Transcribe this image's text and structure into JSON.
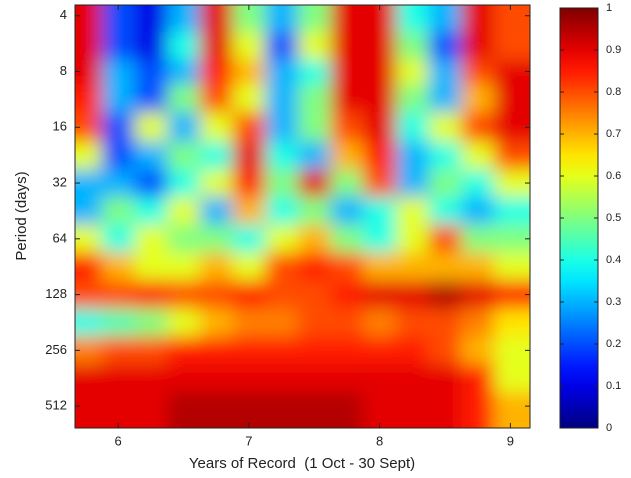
{
  "chart_data": {
    "type": "heatmap",
    "x_label": "Years of Record  (1 Oct - 30 Sept)",
    "y_label": "Period (days)",
    "x": [
      5.75,
      6.0,
      6.25,
      6.5,
      6.75,
      7.0,
      7.25,
      7.5,
      7.75,
      8.0,
      8.25,
      8.5,
      8.75,
      9.0
    ],
    "y": [
      4,
      6,
      8,
      11,
      16,
      23,
      32,
      45,
      64,
      90,
      128,
      181,
      256,
      362,
      512
    ],
    "z": [
      [
        0.9,
        0.2,
        0.1,
        0.3,
        0.9,
        0.5,
        0.3,
        0.5,
        0.9,
        0.9,
        0.4,
        0.3,
        0.9,
        0.8
      ],
      [
        0.9,
        0.2,
        0.1,
        0.4,
        0.9,
        0.6,
        0.2,
        0.6,
        0.9,
        0.9,
        0.5,
        0.2,
        0.9,
        0.8
      ],
      [
        0.9,
        0.3,
        0.2,
        0.3,
        0.85,
        0.7,
        0.3,
        0.4,
        0.9,
        0.9,
        0.6,
        0.3,
        0.8,
        0.9
      ],
      [
        0.85,
        0.3,
        0.2,
        0.5,
        0.8,
        0.6,
        0.3,
        0.5,
        0.9,
        0.9,
        0.5,
        0.3,
        0.7,
        0.9
      ],
      [
        0.8,
        0.2,
        0.6,
        0.3,
        0.6,
        0.8,
        0.3,
        0.5,
        0.8,
        0.9,
        0.4,
        0.6,
        0.8,
        0.9
      ],
      [
        0.6,
        0.2,
        0.3,
        0.5,
        0.4,
        0.9,
        0.4,
        0.3,
        0.7,
        0.85,
        0.3,
        0.4,
        0.6,
        0.8
      ],
      [
        0.3,
        0.3,
        0.2,
        0.4,
        0.6,
        0.85,
        0.5,
        0.9,
        0.5,
        0.8,
        0.3,
        0.5,
        0.4,
        0.6
      ],
      [
        0.3,
        0.5,
        0.4,
        0.6,
        0.3,
        0.7,
        0.4,
        0.5,
        0.3,
        0.4,
        0.6,
        0.4,
        0.3,
        0.4
      ],
      [
        0.6,
        0.4,
        0.6,
        0.5,
        0.5,
        0.4,
        0.6,
        0.7,
        0.5,
        0.4,
        0.6,
        0.8,
        0.5,
        0.5
      ],
      [
        0.85,
        0.7,
        0.6,
        0.6,
        0.7,
        0.6,
        0.8,
        0.85,
        0.8,
        0.7,
        0.7,
        0.7,
        0.7,
        0.6
      ],
      [
        0.8,
        0.8,
        0.85,
        0.8,
        0.8,
        0.85,
        0.8,
        0.8,
        0.85,
        0.9,
        0.9,
        0.95,
        0.9,
        0.85
      ],
      [
        0.4,
        0.45,
        0.5,
        0.6,
        0.7,
        0.75,
        0.75,
        0.8,
        0.8,
        0.75,
        0.8,
        0.8,
        0.75,
        0.65
      ],
      [
        0.75,
        0.8,
        0.8,
        0.85,
        0.85,
        0.85,
        0.85,
        0.85,
        0.85,
        0.85,
        0.85,
        0.8,
        0.7,
        0.6
      ],
      [
        0.9,
        0.9,
        0.9,
        0.9,
        0.9,
        0.9,
        0.9,
        0.9,
        0.9,
        0.9,
        0.9,
        0.9,
        0.85,
        0.6
      ],
      [
        0.9,
        0.9,
        0.9,
        0.95,
        0.95,
        0.95,
        0.95,
        0.95,
        0.95,
        0.9,
        0.9,
        0.9,
        0.85,
        0.7
      ]
    ],
    "xlim": [
      5.67,
      9.15
    ],
    "xticks": [
      6,
      7,
      8,
      9
    ],
    "ylim": [
      3.5,
      672
    ],
    "yticks": [
      4,
      8,
      16,
      32,
      64,
      128,
      256,
      512
    ],
    "y_scale": "log",
    "y_reversed": true,
    "colormap": "jet",
    "zlim": [
      0,
      1
    ],
    "zticks": [
      0,
      0.1,
      0.2,
      0.3,
      0.4,
      0.5,
      0.6,
      0.7,
      0.8,
      0.9,
      1
    ]
  }
}
